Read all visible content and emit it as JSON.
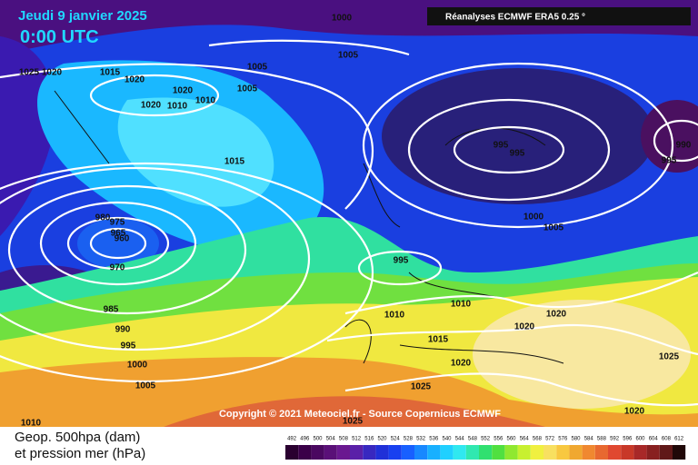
{
  "header": {
    "date": "Jeudi 9 janvier 2025",
    "time": "0:00 UTC",
    "source": "Réanalyses ECMWF ERA5 0.25 °"
  },
  "copyright": "Copyright © 2021 Meteociel.fr - Source Copernicus ECMWF",
  "legend": {
    "line1": "Geop. 500hpa (dam)",
    "line2": "et pression mer (hPa)",
    "scale": {
      "ticks": [
        492,
        496,
        500,
        504,
        508,
        512,
        516,
        520,
        524,
        528,
        532,
        536,
        540,
        544,
        548,
        552,
        556,
        560,
        564,
        568,
        572,
        576,
        580,
        584,
        588,
        592,
        596,
        600,
        604,
        608,
        612
      ],
      "colors": [
        "#2a0030",
        "#3a0048",
        "#4a0860",
        "#5a1078",
        "#6a1890",
        "#5a20a8",
        "#3828c0",
        "#2030d8",
        "#1840f0",
        "#1860ff",
        "#1888ff",
        "#18b0ff",
        "#20d0ff",
        "#30e8f0",
        "#30e8b0",
        "#30e070",
        "#50e040",
        "#90e830",
        "#c8f030",
        "#f0f040",
        "#f8e060",
        "#f8c840",
        "#f0a830",
        "#f08830",
        "#e86830",
        "#e04830",
        "#c83828",
        "#a82828",
        "#882020",
        "#601818",
        "#200808"
      ]
    }
  },
  "isobar_labels": [
    1000,
    1005,
    1025,
    1020,
    1015,
    1020,
    1005,
    1005,
    1020,
    1010,
    1020,
    1010,
    1015,
    995,
    995,
    990,
    995,
    980,
    975,
    965,
    960,
    970,
    1000,
    1005,
    995,
    985,
    1010,
    1010,
    1020,
    1020,
    990,
    995,
    1015,
    1000,
    1020,
    1025,
    1005,
    1025,
    1020,
    1025,
    1010
  ]
}
